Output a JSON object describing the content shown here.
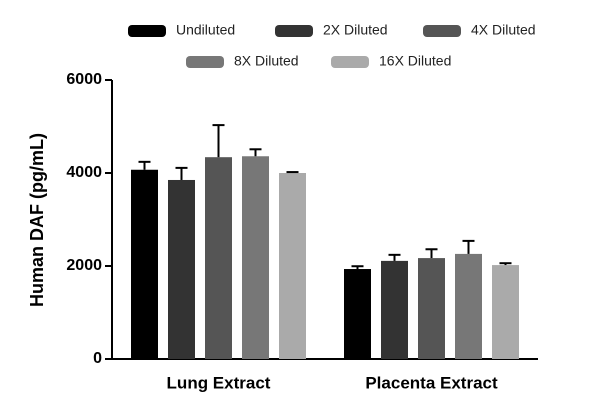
{
  "chart_data": {
    "type": "bar",
    "y_label": "Human DAF (pg/mL)",
    "categories": [
      "Lung Extract",
      "Placenta Extract"
    ],
    "series": [
      {
        "name": "Undiluted",
        "color": "#000000",
        "values": [
          4070,
          1935
        ],
        "errors": [
          170,
          60
        ]
      },
      {
        "name": "2X Diluted",
        "color": "#333333",
        "values": [
          3850,
          2110
        ],
        "errors": [
          260,
          130
        ]
      },
      {
        "name": "4X Diluted",
        "color": "#555555",
        "values": [
          4340,
          2170
        ],
        "errors": [
          690,
          190
        ]
      },
      {
        "name": "8X Diluted",
        "color": "#777777",
        "values": [
          4360,
          2260
        ],
        "errors": [
          150,
          280
        ]
      },
      {
        "name": "16X Diluted",
        "color": "#aaaaaa",
        "values": [
          4000,
          2020
        ],
        "errors": [
          20,
          40
        ]
      }
    ],
    "ylim": [
      0,
      6000
    ],
    "yticks": [
      0,
      2000,
      4000,
      6000
    ],
    "legend": "top"
  }
}
